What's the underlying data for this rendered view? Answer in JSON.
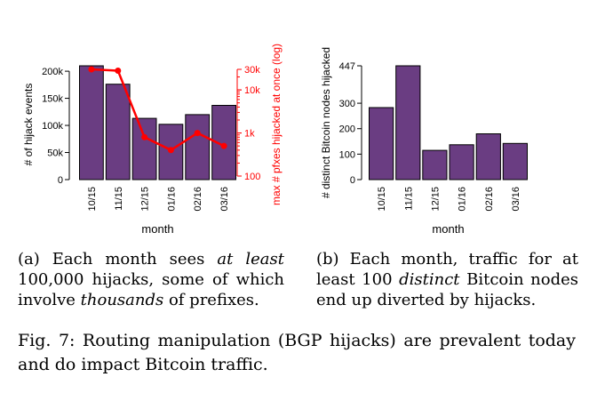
{
  "chart_data": [
    {
      "type": "bar",
      "categories": [
        "10/15",
        "11/15",
        "12/15",
        "01/16",
        "02/16",
        "03/16"
      ],
      "values": [
        210000,
        176000,
        113000,
        102000,
        120000,
        137000
      ],
      "xlabel": "month",
      "ylabel": "# of hijack events",
      "ylim": [
        0,
        210000
      ],
      "yticks": [
        "0",
        "50k",
        "100k",
        "150k",
        "200k"
      ],
      "bar_color": "#6a3d82",
      "secondary": {
        "type": "line",
        "values": [
          30000,
          28000,
          800,
          400,
          1000,
          500
        ],
        "ylabel": "max # pfxes hijacked at once (log)",
        "scale": "log",
        "ylim": [
          100,
          30000
        ],
        "yticks": [
          "100",
          "1k",
          "10k",
          "30k"
        ],
        "color": "#ff0000"
      },
      "caption_parts": [
        {
          "t": "(a) Each month sees ",
          "i": false
        },
        {
          "t": "at least",
          "i": true
        },
        {
          "t": " 100,000 hijacks, some of which involve ",
          "i": false
        },
        {
          "t": "thousands",
          "i": true
        },
        {
          "t": " of prefixes.",
          "i": false
        }
      ]
    },
    {
      "type": "bar",
      "categories": [
        "10/15",
        "11/15",
        "12/15",
        "01/16",
        "02/16",
        "03/16"
      ],
      "values": [
        283,
        447,
        115,
        137,
        180,
        142
      ],
      "xlabel": "month",
      "ylabel": "# distinct Bitcoin nodes hijacked",
      "ylim": [
        0,
        447
      ],
      "yticks": [
        "0",
        "100",
        "200",
        "300",
        "447"
      ],
      "bar_color": "#6a3d82",
      "caption_parts": [
        {
          "t": "(b) Each month, traffic for at least 100 ",
          "i": false
        },
        {
          "t": "distinct",
          "i": true
        },
        {
          "t": " Bitcoin nodes end up diverted by hijacks.",
          "i": false
        }
      ]
    }
  ],
  "figure_caption": "Fig. 7: Routing manipulation (BGP hijacks) are prevalent today and do impact Bitcoin traffic."
}
